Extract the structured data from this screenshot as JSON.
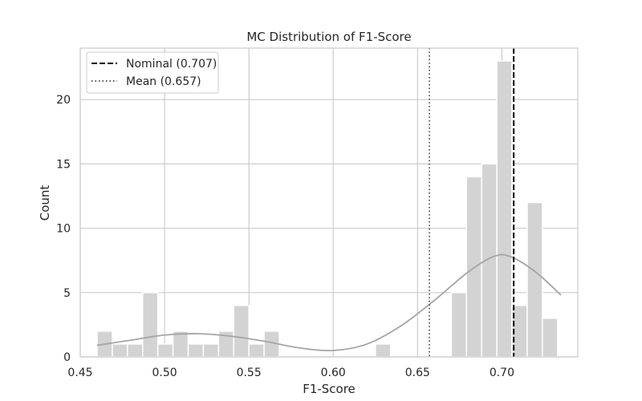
{
  "chart_data": {
    "type": "bar",
    "title": "MC Distribution of F1-Score",
    "xlabel": "F1-Score",
    "ylabel": "Count",
    "xlim": [
      0.45,
      0.745
    ],
    "ylim": [
      0,
      24
    ],
    "grid": true,
    "legend_position": "top-left",
    "x_ticks": [
      "0.45",
      "0.50",
      "0.55",
      "0.60",
      "0.65",
      "0.70"
    ],
    "x_tick_values": [
      0.45,
      0.5,
      0.55,
      0.6,
      0.65,
      0.7
    ],
    "y_ticks": [
      "0",
      "5",
      "10",
      "15",
      "20"
    ],
    "y_tick_values": [
      0,
      5,
      10,
      15,
      20
    ],
    "bin_width": 0.009,
    "bins": [
      {
        "x": 0.4645,
        "count": 2
      },
      {
        "x": 0.4735,
        "count": 1
      },
      {
        "x": 0.4825,
        "count": 1
      },
      {
        "x": 0.4915,
        "count": 5
      },
      {
        "x": 0.5005,
        "count": 1
      },
      {
        "x": 0.5095,
        "count": 2
      },
      {
        "x": 0.5185,
        "count": 1
      },
      {
        "x": 0.5275,
        "count": 1
      },
      {
        "x": 0.5365,
        "count": 2
      },
      {
        "x": 0.5455,
        "count": 4
      },
      {
        "x": 0.5545,
        "count": 1
      },
      {
        "x": 0.5635,
        "count": 2
      },
      {
        "x": 0.6295,
        "count": 1
      },
      {
        "x": 0.6745,
        "count": 5
      },
      {
        "x": 0.6835,
        "count": 14
      },
      {
        "x": 0.6925,
        "count": 15
      },
      {
        "x": 0.7015,
        "count": 23
      },
      {
        "x": 0.7105,
        "count": 4
      },
      {
        "x": 0.7195,
        "count": 12
      },
      {
        "x": 0.7285,
        "count": 3
      }
    ],
    "kde": [
      {
        "x": 0.46,
        "y": 0.9
      },
      {
        "x": 0.48,
        "y": 1.3
      },
      {
        "x": 0.5,
        "y": 1.7
      },
      {
        "x": 0.52,
        "y": 1.8
      },
      {
        "x": 0.54,
        "y": 1.6
      },
      {
        "x": 0.56,
        "y": 1.2
      },
      {
        "x": 0.58,
        "y": 0.7
      },
      {
        "x": 0.6,
        "y": 0.5
      },
      {
        "x": 0.62,
        "y": 1.0
      },
      {
        "x": 0.64,
        "y": 2.4
      },
      {
        "x": 0.66,
        "y": 4.4
      },
      {
        "x": 0.68,
        "y": 6.6
      },
      {
        "x": 0.695,
        "y": 7.8
      },
      {
        "x": 0.705,
        "y": 7.8
      },
      {
        "x": 0.72,
        "y": 6.6
      },
      {
        "x": 0.735,
        "y": 4.8
      }
    ],
    "lines": [
      {
        "label": "Nominal (0.707)",
        "x": 0.707,
        "style": "dashed"
      },
      {
        "label": "Mean (0.657)",
        "x": 0.657,
        "style": "dotted"
      }
    ],
    "colors": {
      "bar_fill": "#d3d3d3",
      "bar_edge": "#ffffff",
      "kde": "#a5a5a5",
      "grid": "#cccccc",
      "frame": "#cccccc",
      "nominal": "#000000",
      "mean": "#555555"
    }
  }
}
